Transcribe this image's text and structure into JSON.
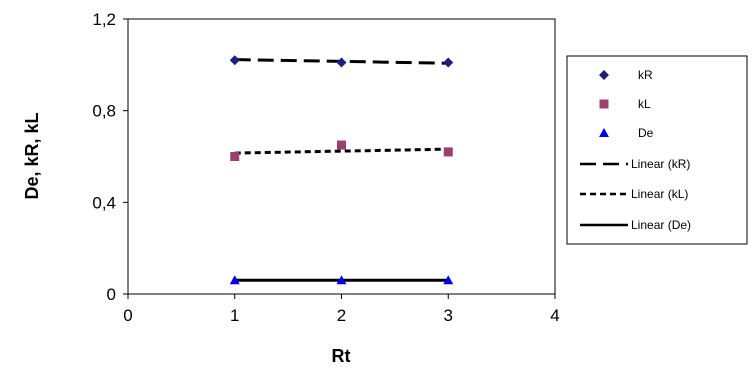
{
  "chart_data": {
    "type": "scatter",
    "xlabel": "Rt",
    "ylabel": "De, kR, kL",
    "xlim": [
      0,
      4
    ],
    "ylim": [
      0,
      1.2
    ],
    "xticks": [
      "0",
      "1",
      "2",
      "3",
      "4"
    ],
    "yticks": [
      "0",
      "0,4",
      "0,8",
      "1,2"
    ],
    "grid": false,
    "legend_position": "right",
    "series": [
      {
        "name": "kR",
        "marker": "diamond",
        "color": "#1f1f7a",
        "x": [
          1,
          2,
          3
        ],
        "y": [
          1.02,
          1.01,
          1.01
        ]
      },
      {
        "name": "kL",
        "marker": "square",
        "color": "#9b3f6e",
        "x": [
          1,
          2,
          3
        ],
        "y": [
          0.6,
          0.65,
          0.62
        ]
      },
      {
        "name": "De",
        "marker": "triangle",
        "color": "#0000ee",
        "x": [
          1,
          2,
          3
        ],
        "y": [
          0.06,
          0.06,
          0.06
        ]
      }
    ],
    "trendlines": [
      {
        "name": "Linear (kR)",
        "dash": "long",
        "x": [
          1,
          3
        ],
        "y": [
          1.023,
          1.007
        ]
      },
      {
        "name": "Linear (kL)",
        "dash": "short",
        "x": [
          1,
          3
        ],
        "y": [
          0.615,
          0.632
        ]
      },
      {
        "name": "Linear (De)",
        "dash": "solid",
        "x": [
          1,
          3
        ],
        "y": [
          0.06,
          0.06
        ]
      }
    ]
  }
}
